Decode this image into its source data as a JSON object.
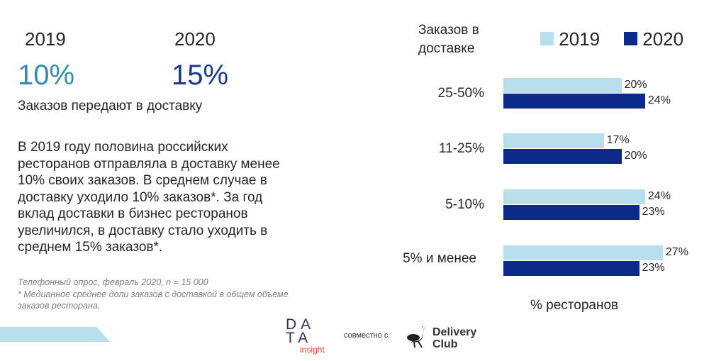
{
  "left": {
    "year_a": "2019",
    "year_b": "2020",
    "value_a": "10%",
    "value_b": "15%",
    "subtitle": "Заказов передают в доставку",
    "paragraph": "В 2019 году половина российских ресторанов отправляла в доставку менее 10% своих заказов. В среднем случае в доставку уходило 10% заказов*. За год вклад доставки в бизнес ресторанов увеличился, в доставку стало уходить в среднем 15% заказов*.",
    "note1": "Телефонный опрос, февраль 2020, n = 15 000",
    "note2": "* Медианное среднее доли заказов с доставкой в общем объеме заказов ресторана."
  },
  "footer": {
    "logo1": "DATA insight",
    "joint": "совместно с",
    "logo2_line1": "Delivery",
    "logo2_line2": "Club"
  },
  "colors": {
    "light": "#b8dfeb",
    "dark": "#0b2a8a",
    "teal": "#2e8db0",
    "navy": "#173a8e"
  },
  "chart_data": {
    "type": "bar",
    "orientation": "horizontal",
    "title": "Заказов в доставке",
    "xlabel": "% ресторанов",
    "categories": [
      "25-50%",
      "11-25%",
      "5-10%",
      "5% и менее"
    ],
    "series": [
      {
        "name": "2019",
        "values": [
          20,
          17,
          24,
          27
        ],
        "labels": [
          "20%",
          "17%",
          "24%",
          "27%"
        ]
      },
      {
        "name": "2020",
        "values": [
          24,
          20,
          23,
          23
        ],
        "labels": [
          "24%",
          "20%",
          "23%",
          "23%"
        ]
      }
    ],
    "legend": "top-right"
  }
}
